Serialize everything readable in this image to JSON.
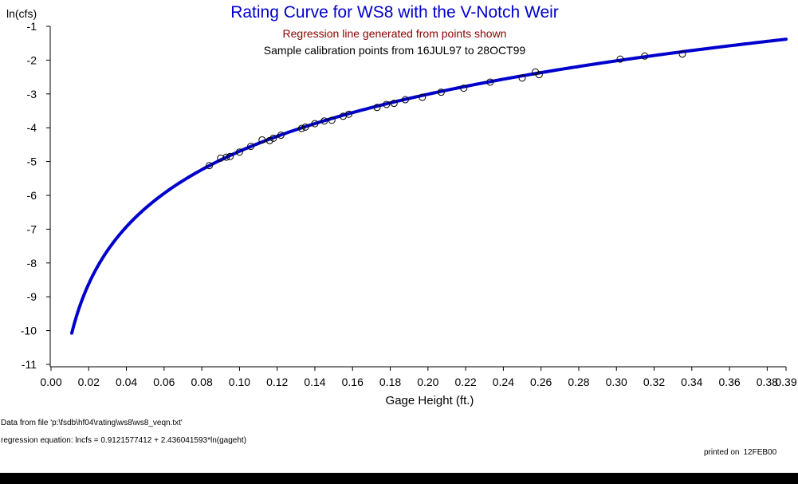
{
  "chart_data": {
    "type": "scatter",
    "title": "Rating Curve for WS8 with the V-Notch Weir",
    "subtitle1": "Regression line generated from points shown",
    "subtitle2": "Sample calibration points from 16JUL97 to 28OCT99",
    "xlabel": "Gage Height (ft.)",
    "ylabel": "ln(cfs)",
    "xlim": [
      0.0,
      0.39
    ],
    "ylim": [
      -11,
      -1
    ],
    "xticks": [
      "0.00",
      "0.02",
      "0.04",
      "0.06",
      "0.08",
      "0.10",
      "0.12",
      "0.14",
      "0.16",
      "0.18",
      "0.20",
      "0.22",
      "0.24",
      "0.26",
      "0.28",
      "0.30",
      "0.32",
      "0.34",
      "0.36",
      "0.38",
      "0.39"
    ],
    "xtick_values": [
      0.0,
      0.02,
      0.04,
      0.06,
      0.08,
      0.1,
      0.12,
      0.14,
      0.16,
      0.18,
      0.2,
      0.22,
      0.24,
      0.26,
      0.28,
      0.3,
      0.32,
      0.34,
      0.36,
      0.38,
      0.39
    ],
    "yticks": [
      "-1",
      "-2",
      "-3",
      "-4",
      "-5",
      "-6",
      "-7",
      "-8",
      "-9",
      "-10",
      "-11"
    ],
    "ytick_values": [
      -1,
      -2,
      -3,
      -4,
      -5,
      -6,
      -7,
      -8,
      -9,
      -10,
      -11
    ],
    "line_color": "#0000cc",
    "regression": {
      "intercept": 0.9121577412,
      "slope": 2.436041593,
      "x_start": 0.011,
      "x_end": 0.39
    },
    "points": {
      "x": [
        0.084,
        0.09,
        0.093,
        0.095,
        0.1,
        0.106,
        0.112,
        0.116,
        0.118,
        0.122,
        0.133,
        0.135,
        0.14,
        0.145,
        0.149,
        0.155,
        0.158,
        0.173,
        0.178,
        0.182,
        0.188,
        0.197,
        0.207,
        0.219,
        0.233,
        0.25,
        0.257,
        0.259,
        0.302,
        0.315,
        0.335
      ],
      "y": [
        -5.12,
        -4.9,
        -4.87,
        -4.85,
        -4.72,
        -4.55,
        -4.36,
        -4.38,
        -4.31,
        -4.22,
        -4.02,
        -3.98,
        -3.88,
        -3.8,
        -3.78,
        -3.66,
        -3.6,
        -3.4,
        -3.31,
        -3.28,
        -3.17,
        -3.1,
        -2.95,
        -2.83,
        -2.65,
        -2.53,
        -2.35,
        -2.43,
        -1.97,
        -1.88,
        -1.82
      ]
    }
  },
  "footnotes": {
    "data_file": "Data from file 'p:\\fsdb\\hf04\\rating\\ws8\\ws8_veqn.txt'",
    "equation": "regression equation: lncfs = 0.9121577412 + 2.436041593*ln(gageht)",
    "printed_label": "printed on",
    "printed_date": "12FEB00"
  }
}
